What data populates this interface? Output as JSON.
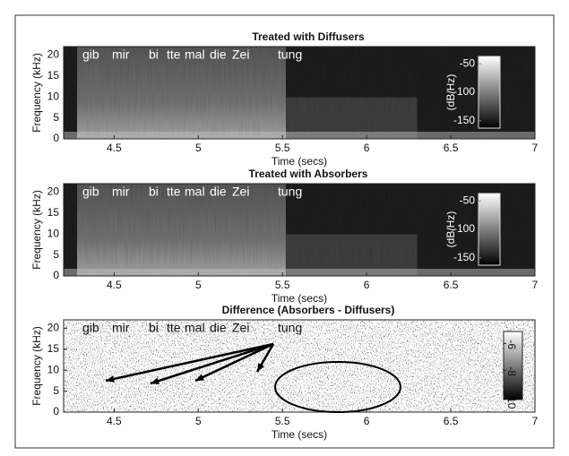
{
  "chart_data": [
    {
      "type": "spectrogram",
      "title": "Treated with Diffusers",
      "xlabel": "Time (secs)",
      "ylabel": "Frequency (kHz)",
      "xlim": [
        4.2,
        7
      ],
      "xticks": [
        4.5,
        5,
        5.5,
        6,
        6.5,
        7
      ],
      "ylim": [
        0,
        22
      ],
      "yticks": [
        0,
        5,
        10,
        15,
        20
      ],
      "colorbar": {
        "label": "(dB/Hz)",
        "lim": [
          -163,
          -37
        ],
        "ticks": [
          -50,
          -100,
          -150
        ]
      },
      "annotations": [
        "gib",
        "mir",
        "bi",
        "tte",
        "mal",
        "die",
        "Zei",
        "tung"
      ]
    },
    {
      "type": "spectrogram",
      "title": "Treated with Absorbers",
      "xlabel": "Time (secs)",
      "ylabel": "Frequency (kHz)",
      "xlim": [
        4.2,
        7
      ],
      "xticks": [
        4.5,
        5,
        5.5,
        6,
        6.5,
        7
      ],
      "ylim": [
        0,
        22
      ],
      "yticks": [
        0,
        5,
        10,
        15,
        20
      ],
      "colorbar": {
        "label": "(dB/Hz)",
        "lim": [
          -163,
          -37
        ],
        "ticks": [
          -50,
          -100,
          -150
        ]
      },
      "annotations": [
        "gib",
        "mir",
        "bi",
        "tte",
        "mal",
        "die",
        "Zei",
        "tung"
      ]
    },
    {
      "type": "spectrogram",
      "title": "Difference (Absorbers - Diffusers)",
      "xlabel": "Time (secs)",
      "ylabel": "Frequency (kHz)",
      "xlim": [
        4.2,
        7
      ],
      "xticks": [
        4.5,
        5,
        5.5,
        6,
        6.5,
        7
      ],
      "ylim": [
        0,
        22
      ],
      "yticks": [
        0,
        5,
        10,
        15,
        20
      ],
      "colorbar": {
        "lim": [
          -10.2,
          -5.1
        ],
        "ticks": [
          -6,
          -8,
          -10
        ]
      },
      "annotations": [
        "gib",
        "mir",
        "bi",
        "tte",
        "mal",
        "die",
        "Zei",
        "tung"
      ]
    }
  ]
}
